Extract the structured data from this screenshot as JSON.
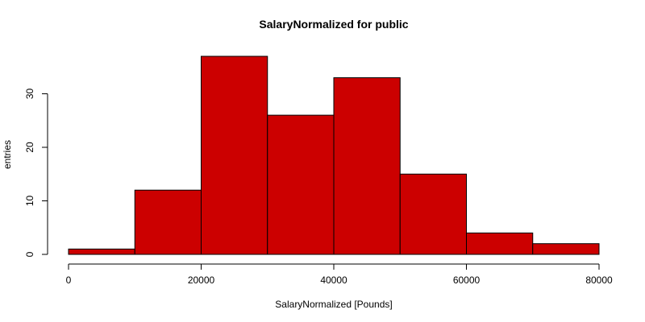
{
  "chart_data": {
    "type": "bar",
    "title": "SalaryNormalized for public",
    "xlabel": "SalaryNormalized [Pounds]",
    "ylabel": "entries",
    "bins": [
      {
        "start": 0,
        "end": 10000,
        "value": 1
      },
      {
        "start": 10000,
        "end": 20000,
        "value": 12
      },
      {
        "start": 20000,
        "end": 30000,
        "value": 37
      },
      {
        "start": 30000,
        "end": 40000,
        "value": 26
      },
      {
        "start": 40000,
        "end": 50000,
        "value": 33
      },
      {
        "start": 50000,
        "end": 60000,
        "value": 15
      },
      {
        "start": 60000,
        "end": 70000,
        "value": 4
      },
      {
        "start": 70000,
        "end": 80000,
        "value": 2
      }
    ],
    "xlim": [
      0,
      80000
    ],
    "ylim": [
      0,
      38
    ],
    "xticks": [
      0,
      20000,
      40000,
      60000,
      80000
    ],
    "yticks": [
      0,
      10,
      20,
      30
    ],
    "bar_color": "#cc0000",
    "grid": false,
    "legend": "none"
  }
}
